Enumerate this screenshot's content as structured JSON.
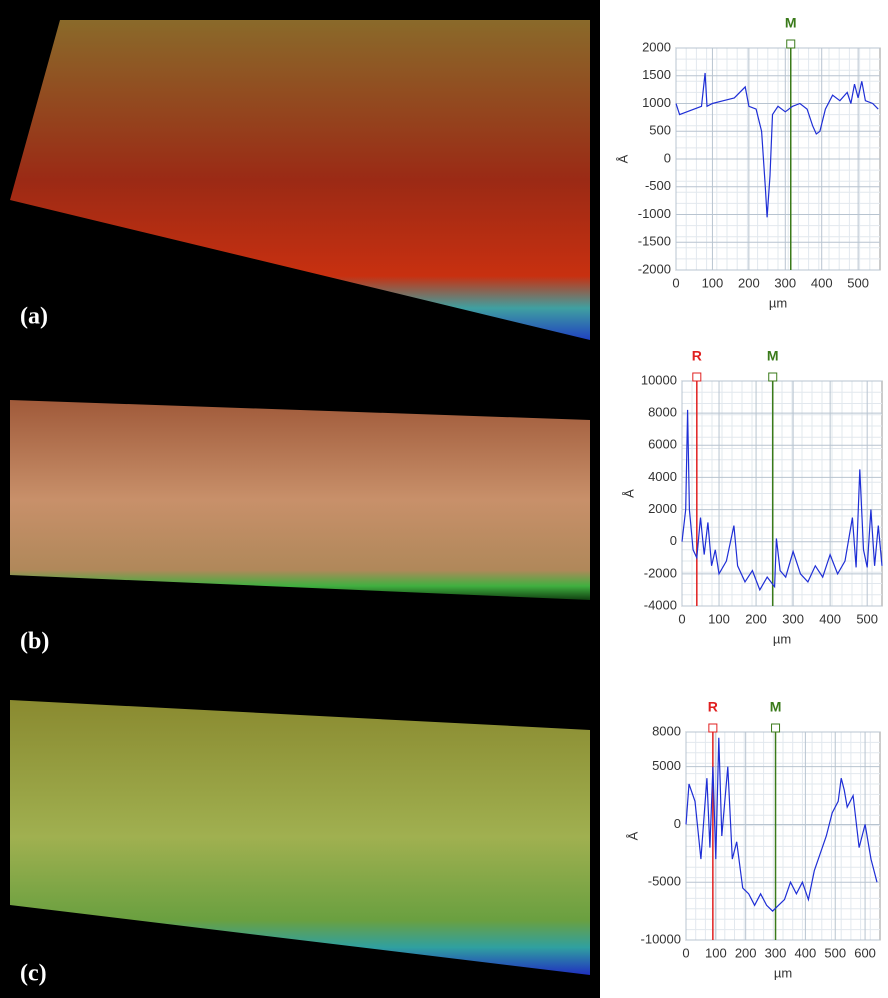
{
  "panel_labels": [
    "(a)",
    "(b)",
    "(c)"
  ],
  "chart_data": [
    {
      "type": "line",
      "x_label": "µm",
      "y_label": "Å",
      "color": "#1f2fd6",
      "grid": true,
      "x": [
        0,
        10,
        30,
        50,
        70,
        80,
        85,
        100,
        130,
        160,
        190,
        200,
        220,
        235,
        245,
        250,
        258,
        265,
        280,
        300,
        320,
        340,
        360,
        375,
        385,
        395,
        410,
        430,
        450,
        470,
        480,
        490,
        500,
        510,
        520,
        540,
        555
      ],
      "values": [
        1000,
        800,
        850,
        900,
        950,
        1550,
        950,
        1000,
        1050,
        1100,
        1300,
        950,
        900,
        500,
        -500,
        -1050,
        -300,
        800,
        950,
        850,
        950,
        1000,
        900,
        600,
        450,
        500,
        900,
        1150,
        1050,
        1200,
        1000,
        1350,
        1100,
        1400,
        1050,
        1000,
        900
      ],
      "xlim": [
        0,
        560
      ],
      "xticks": [
        0,
        100,
        200,
        300,
        400,
        500
      ],
      "ylim": [
        -2000,
        2000
      ],
      "yticks": [
        -2000,
        -1500,
        -1000,
        -500,
        0,
        500,
        1000,
        1500,
        2000
      ],
      "markers": [
        {
          "label": "M",
          "x": 315,
          "color": "#3a7a1a"
        }
      ]
    },
    {
      "type": "line",
      "x_label": "µm",
      "y_label": "Å",
      "color": "#1f2fd6",
      "grid": true,
      "x": [
        0,
        10,
        15,
        20,
        30,
        40,
        50,
        60,
        70,
        80,
        90,
        100,
        120,
        140,
        150,
        170,
        190,
        210,
        230,
        250,
        255,
        265,
        280,
        300,
        320,
        340,
        360,
        380,
        400,
        420,
        440,
        460,
        470,
        480,
        490,
        500,
        510,
        520,
        530,
        540
      ],
      "values": [
        0,
        2000,
        8200,
        2000,
        -500,
        -1000,
        1500,
        -800,
        1200,
        -1500,
        -500,
        -2000,
        -1200,
        1000,
        -1500,
        -2500,
        -1800,
        -3000,
        -2200,
        -2800,
        200,
        -1800,
        -2200,
        -600,
        -2000,
        -2500,
        -1500,
        -2200,
        -800,
        -2000,
        -1200,
        1500,
        -1600,
        4500,
        -500,
        -1600,
        2000,
        -1500,
        1000,
        -1500
      ],
      "xlim": [
        0,
        540
      ],
      "xticks": [
        0,
        100,
        200,
        300,
        400,
        500
      ],
      "ylim": [
        -4000,
        10000
      ],
      "yticks": [
        -4000,
        -2000,
        0,
        2000,
        4000,
        6000,
        8000,
        10000
      ],
      "markers": [
        {
          "label": "R",
          "x": 40,
          "color": "#e02020"
        },
        {
          "label": "M",
          "x": 245,
          "color": "#3a7a1a"
        }
      ]
    },
    {
      "type": "line",
      "x_label": "µm",
      "y_label": "Å",
      "color": "#1f2fd6",
      "grid": true,
      "x": [
        0,
        10,
        30,
        50,
        70,
        80,
        90,
        100,
        110,
        120,
        140,
        155,
        170,
        190,
        210,
        230,
        250,
        270,
        290,
        310,
        330,
        350,
        370,
        390,
        410,
        430,
        450,
        470,
        490,
        510,
        520,
        530,
        540,
        560,
        580,
        600,
        620,
        640
      ],
      "values": [
        0,
        3500,
        2000,
        -3000,
        4000,
        -2000,
        5000,
        -3000,
        7500,
        -1000,
        5000,
        -3000,
        -1500,
        -5500,
        -6000,
        -7000,
        -6000,
        -7000,
        -7500,
        -7000,
        -6500,
        -5000,
        -6000,
        -5000,
        -6500,
        -4000,
        -2500,
        -1000,
        1000,
        2000,
        4000,
        3000,
        1500,
        2500,
        -2000,
        0,
        -3000,
        -5000
      ],
      "xlim": [
        0,
        650
      ],
      "xticks": [
        0,
        100,
        200,
        300,
        400,
        500,
        600
      ],
      "ylim": [
        -10000,
        8000
      ],
      "yticks": [
        -10000,
        -5000,
        0,
        5000,
        8000
      ],
      "markers": [
        {
          "label": "R",
          "x": 90,
          "color": "#e02020"
        },
        {
          "label": "M",
          "x": 300,
          "color": "#3a7a1a"
        }
      ]
    }
  ]
}
